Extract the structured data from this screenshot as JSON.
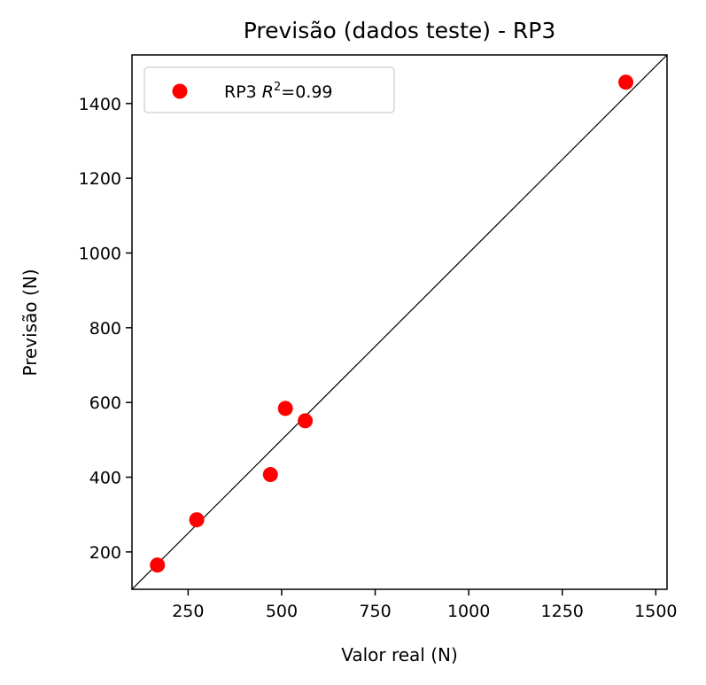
{
  "chart_data": {
    "type": "scatter",
    "title": "Previsão (dados teste) - RP3",
    "xlabel": "Valor real (N)",
    "ylabel": "Previsão (N)",
    "xlim": [
      100,
      1530
    ],
    "ylim": [
      100,
      1530
    ],
    "x_ticks": [
      250,
      500,
      750,
      1000,
      1250,
      1500
    ],
    "y_ticks": [
      200,
      400,
      600,
      800,
      1000,
      1200,
      1400
    ],
    "grid": false,
    "legend_position": "top-left",
    "legend": {
      "label_prefix": "RP3 ",
      "r_symbol": "R",
      "r_exponent": "2",
      "label_suffix": "=0.99"
    },
    "reference_line": "y = x",
    "series": [
      {
        "name": "RP3 R²=0.99",
        "color": "#ff0000",
        "points": [
          {
            "x": 168,
            "y": 165
          },
          {
            "x": 273,
            "y": 286
          },
          {
            "x": 470,
            "y": 407
          },
          {
            "x": 510,
            "y": 584
          },
          {
            "x": 563,
            "y": 551
          },
          {
            "x": 1420,
            "y": 1457
          }
        ]
      }
    ]
  }
}
